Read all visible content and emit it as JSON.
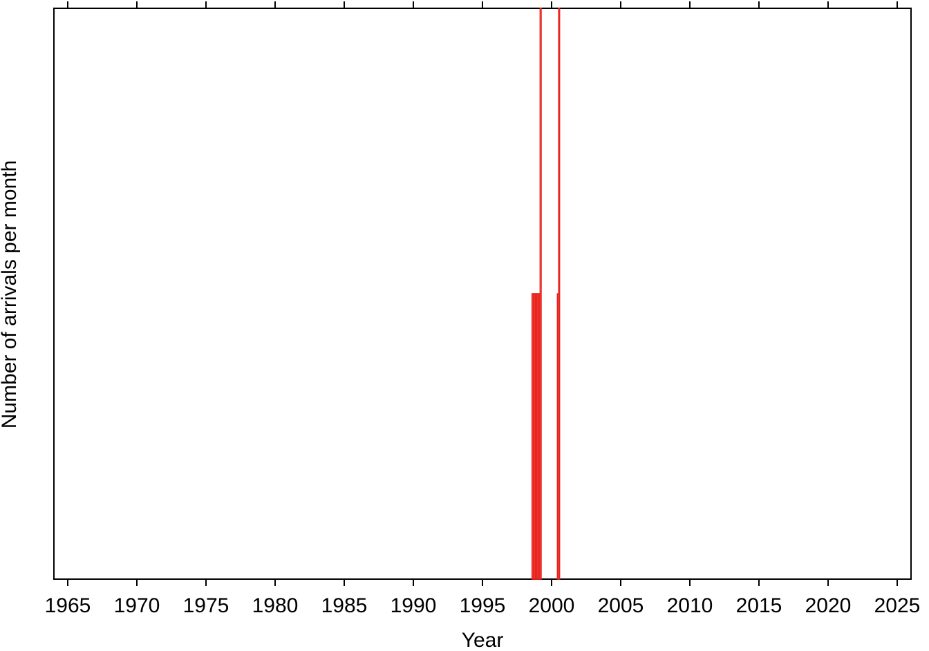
{
  "chart_data": {
    "type": "histogram",
    "x_label": "Year",
    "y_label": "Number of arrivals per month",
    "bins": [
      1998.583,
      1998.667,
      1998.75,
      1998.833,
      1998.917,
      1999,
      1999.083,
      1999.167,
      1999.25,
      1999.333,
      1999.417,
      1999.5,
      1999.583,
      1999.667,
      1999.75,
      1999.833,
      1999.917,
      2000,
      2000.083,
      2000.167,
      2000.25,
      2000.333,
      2000.417,
      2000.5,
      2000.583
    ],
    "values": [
      1,
      1,
      1,
      1,
      1,
      1,
      1,
      2,
      0,
      0,
      0,
      0,
      0,
      0,
      0,
      0,
      0,
      0,
      0,
      0,
      0,
      0,
      1,
      2
    ],
    "color": "#e8221b",
    "xlim": [
      1964,
      2026
    ],
    "xticks": [
      1965,
      1970,
      1975,
      1980,
      1985,
      1990,
      1995,
      2000,
      2005,
      2010,
      2015,
      2020,
      2025
    ],
    "ylim": [
      0,
      2
    ]
  }
}
